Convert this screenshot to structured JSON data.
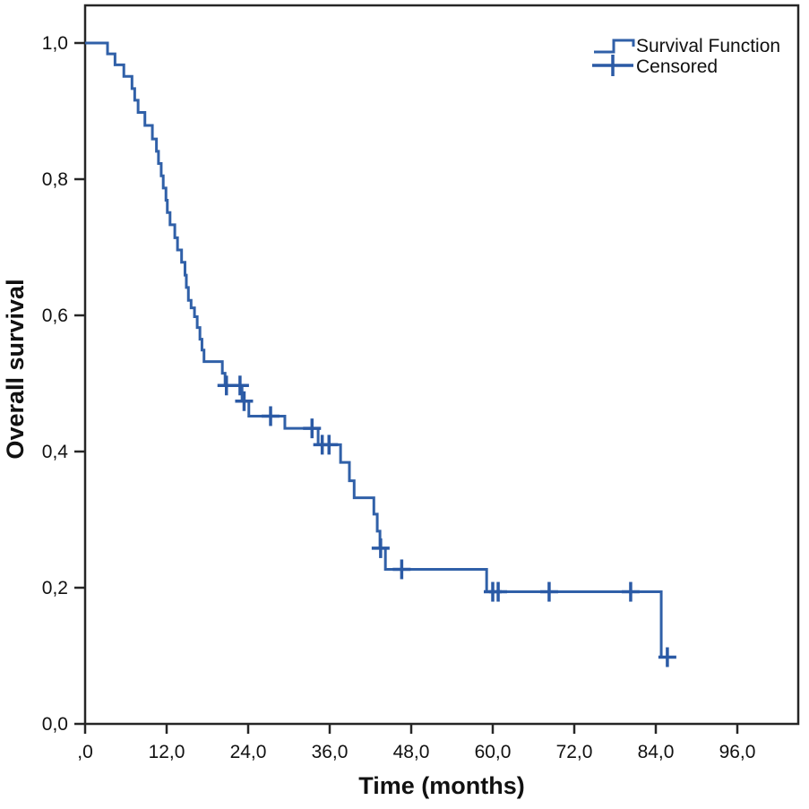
{
  "figure": {
    "legend": {
      "survival_label": "Survival Function",
      "censored_label": "Censored"
    },
    "x_axis": {
      "title": "Time (months)",
      "tick_labels": [
        ",0",
        "12,0",
        "24,0",
        "36,0",
        "48,0",
        "60,0",
        "72,0",
        "84,0",
        "96,0"
      ],
      "tick_values": [
        0,
        12,
        24,
        36,
        48,
        60,
        72,
        84,
        96
      ]
    },
    "y_axis": {
      "title": "Overall survival",
      "tick_labels": [
        "0,0",
        "0,2",
        "0,4",
        "0,6",
        "0,8",
        "1,0"
      ],
      "tick_values": [
        0,
        0.2,
        0.4,
        0.6,
        0.8,
        1.0
      ]
    },
    "colors": {
      "line": "#3060a8",
      "censor": "#2b5aa5",
      "axis": "#262626",
      "text": "#111111",
      "background": "#ffffff"
    }
  },
  "chart_data": {
    "type": "line",
    "subtype": "kaplan-meier-step",
    "title": "",
    "xlabel": "Time (months)",
    "ylabel": "Overall survival",
    "xlim": [
      0,
      105
    ],
    "ylim": [
      0,
      1.055
    ],
    "x_ticks": [
      0,
      12,
      24,
      36,
      48,
      60,
      72,
      84,
      96
    ],
    "y_ticks": [
      0,
      0.2,
      0.4,
      0.6,
      0.8,
      1.0
    ],
    "grid": false,
    "legend_position": "top-right",
    "series": [
      {
        "name": "Survival Function",
        "start": [
          0,
          1.0
        ],
        "end_time": 86.6,
        "steps": [
          [
            3.3,
            0.984
          ],
          [
            4.4,
            0.968
          ],
          [
            5.7,
            0.951
          ],
          [
            6.9,
            0.933
          ],
          [
            7.3,
            0.916
          ],
          [
            7.8,
            0.898
          ],
          [
            8.8,
            0.879
          ],
          [
            9.9,
            0.859
          ],
          [
            10.5,
            0.841
          ],
          [
            10.8,
            0.823
          ],
          [
            11.2,
            0.805
          ],
          [
            11.5,
            0.787
          ],
          [
            11.9,
            0.769
          ],
          [
            12.1,
            0.751
          ],
          [
            12.5,
            0.733
          ],
          [
            13.2,
            0.714
          ],
          [
            13.6,
            0.696
          ],
          [
            14.2,
            0.678
          ],
          [
            14.7,
            0.659
          ],
          [
            14.9,
            0.641
          ],
          [
            15.2,
            0.622
          ],
          [
            15.6,
            0.611
          ],
          [
            16.1,
            0.598
          ],
          [
            16.5,
            0.582
          ],
          [
            16.9,
            0.565
          ],
          [
            17.2,
            0.549
          ],
          [
            17.5,
            0.532
          ],
          [
            20.2,
            0.515
          ],
          [
            20.6,
            0.497
          ],
          [
            23.1,
            0.474
          ],
          [
            24.1,
            0.452
          ],
          [
            29.4,
            0.434
          ],
          [
            34.3,
            0.41
          ],
          [
            37.6,
            0.384
          ],
          [
            38.9,
            0.357
          ],
          [
            39.6,
            0.332
          ],
          [
            42.5,
            0.308
          ],
          [
            43.0,
            0.283
          ],
          [
            43.4,
            0.258
          ],
          [
            44.2,
            0.227
          ],
          [
            59.1,
            0.194
          ],
          [
            84.8,
            0.098
          ]
        ]
      }
    ],
    "censored": [
      [
        20.8,
        0.497
      ],
      [
        22.8,
        0.497
      ],
      [
        23.4,
        0.474
      ],
      [
        27.3,
        0.452
      ],
      [
        33.4,
        0.434
      ],
      [
        34.9,
        0.41
      ],
      [
        35.9,
        0.41
      ],
      [
        43.5,
        0.258
      ],
      [
        46.6,
        0.227
      ],
      [
        60.0,
        0.194
      ],
      [
        60.8,
        0.194
      ],
      [
        68.3,
        0.194
      ],
      [
        80.3,
        0.194
      ],
      [
        85.7,
        0.098
      ]
    ]
  }
}
